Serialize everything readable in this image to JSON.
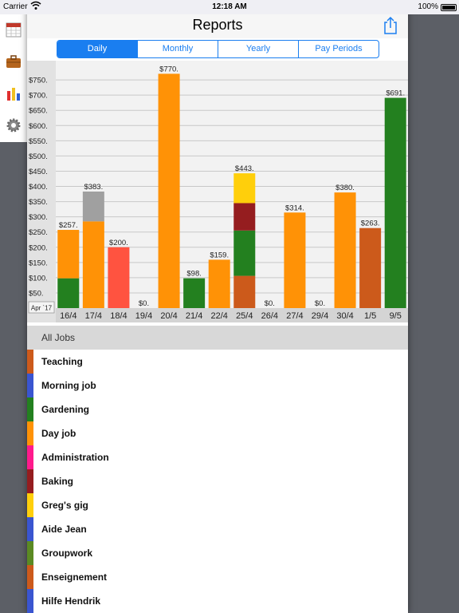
{
  "status": {
    "carrier": "Carrier",
    "time": "12:18 AM",
    "battery": "100%"
  },
  "nav": {
    "title": "Reports",
    "share_icon": "share-icon"
  },
  "segments": [
    {
      "label": "Daily",
      "active": true
    },
    {
      "label": "Monthly",
      "active": false
    },
    {
      "label": "Yearly",
      "active": false
    },
    {
      "label": "Pay Periods",
      "active": false
    }
  ],
  "chart_data": {
    "type": "bar",
    "stacked": true,
    "period_label": "Apr `17",
    "ylim": [
      0,
      800
    ],
    "yticks": [
      "$50.",
      "$100.",
      "$150.",
      "$200.",
      "$250.",
      "$300.",
      "$350.",
      "$400.",
      "$450.",
      "$500.",
      "$550.",
      "$600.",
      "$650.",
      "$700.",
      "$750."
    ],
    "grid": true,
    "categories": [
      "16/4",
      "17/4",
      "18/4",
      "19/4",
      "20/4",
      "21/4",
      "22/4",
      "25/4",
      "26/4",
      "27/4",
      "29/4",
      "30/4",
      "1/5",
      "9/5"
    ],
    "totals": [
      "$257.",
      "$383.",
      "$200.",
      "$0.",
      "$770.",
      "$98.",
      "$159.",
      "$443.",
      "$0.",
      "$314.",
      "$0.",
      "$380.",
      "$263.",
      "$691."
    ],
    "bars": [
      [
        {
          "value": 98,
          "color": "#23801f"
        },
        {
          "value": 159,
          "color": "#ff9206"
        }
      ],
      [
        {
          "value": 285,
          "color": "#ff9206"
        },
        {
          "value": 98,
          "color": "#a0a0a0"
        }
      ],
      [
        {
          "value": 200,
          "color": "#ff5340"
        }
      ],
      [],
      [
        {
          "value": 770,
          "color": "#ff9206"
        }
      ],
      [
        {
          "value": 98,
          "color": "#23801f"
        }
      ],
      [
        {
          "value": 159,
          "color": "#ff9206"
        }
      ],
      [
        {
          "value": 106,
          "color": "#cc5a1b"
        },
        {
          "value": 149,
          "color": "#23801f"
        },
        {
          "value": 90,
          "color": "#951d1f"
        },
        {
          "value": 98,
          "color": "#ffcf0b"
        }
      ],
      [],
      [
        {
          "value": 314,
          "color": "#ff9206"
        }
      ],
      [],
      [
        {
          "value": 380,
          "color": "#ff9206"
        }
      ],
      [
        {
          "value": 263,
          "color": "#cc5a1b"
        }
      ],
      [
        {
          "value": 691,
          "color": "#23801f"
        }
      ]
    ]
  },
  "list": {
    "header": "All Jobs",
    "jobs": [
      {
        "name": "Teaching",
        "color": "#cc5a1b"
      },
      {
        "name": "Morning job",
        "color": "#3a55d0"
      },
      {
        "name": "Gardening",
        "color": "#23801f"
      },
      {
        "name": "Day job",
        "color": "#ff9206"
      },
      {
        "name": "Administration",
        "color": "#ff1a8c"
      },
      {
        "name": "Baking",
        "color": "#951d1f"
      },
      {
        "name": "Greg's gig",
        "color": "#ffcf0b"
      },
      {
        "name": "Aide Jean",
        "color": "#3a55d0"
      },
      {
        "name": "Groupwork",
        "color": "#5b8a23"
      },
      {
        "name": "Enseignement",
        "color": "#cc5a1b"
      },
      {
        "name": "Hilfe Hendrik",
        "color": "#3a55d0"
      }
    ]
  }
}
